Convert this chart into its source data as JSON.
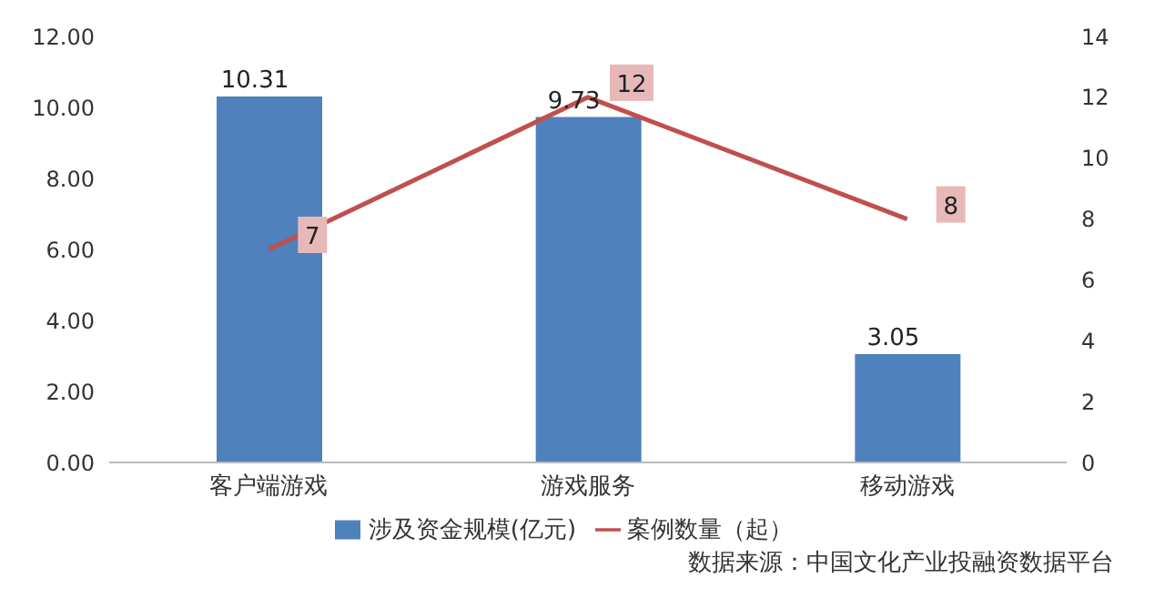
{
  "chart_data": {
    "type": "bar",
    "categories": [
      "客户端游戏",
      "游戏服务",
      "移动游戏"
    ],
    "series": [
      {
        "name": "涉及资金规模(亿元)",
        "color": "#4f81bd",
        "values": [
          10.31,
          9.73,
          3.05
        ]
      },
      {
        "name": "案例数量（起）",
        "type": "line",
        "axis": "y2",
        "color": "#c0504d",
        "values": [
          7,
          12,
          8
        ]
      }
    ],
    "ylim": [
      0,
      12
    ],
    "yticks": [
      {
        "value": 0,
        "label": "0.00"
      },
      {
        "value": 2,
        "label": "2.00"
      },
      {
        "value": 4,
        "label": "4.00"
      },
      {
        "value": 6,
        "label": "6.00"
      },
      {
        "value": 8,
        "label": "8.00"
      },
      {
        "value": 10,
        "label": "10.00"
      },
      {
        "value": 12,
        "label": "12.00"
      }
    ],
    "y2lim": [
      0,
      14
    ],
    "y2ticks": [
      0,
      2,
      4,
      6,
      8,
      10,
      12,
      14
    ],
    "data_labels": true,
    "legend": "bottom",
    "grid": false,
    "line_style": "solid",
    "annotations": [
      "数据来源：中国文化产业投融资数据平台"
    ]
  }
}
